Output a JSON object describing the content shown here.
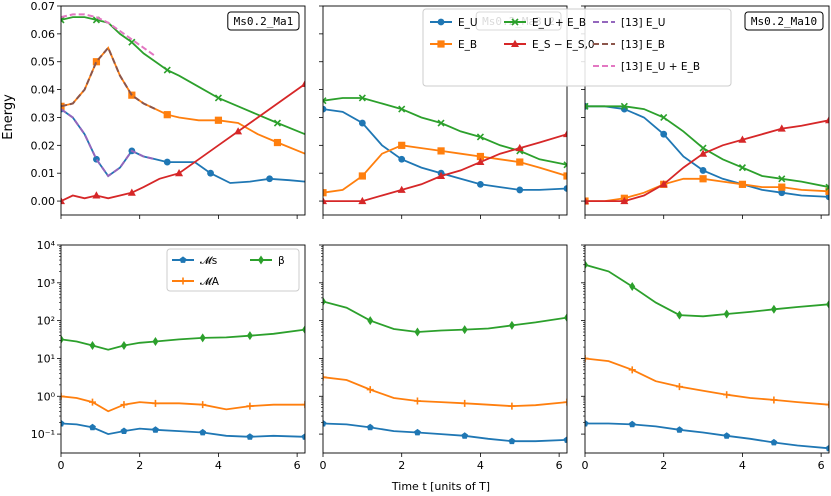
{
  "colors": {
    "E_U": "#1f77b4",
    "E_B": "#ff7f0e",
    "E_UB": "#2ca02c",
    "E_S": "#d62728",
    "ref_E_U": "#9467bd",
    "ref_E_B": "#8c564b",
    "ref_E_UB": "#e377c2",
    "M_s": "#1f77b4",
    "M_A": "#ff7f0e",
    "beta": "#2ca02c"
  },
  "labels": {
    "ylabel_top": "Energy",
    "xlabel": "Time t [units of T]",
    "panel_titles": [
      "Ms0.2_Ma1",
      "Ms0.2_Ma3.2",
      "Ms0.2_Ma10"
    ]
  },
  "legend_top": [
    {
      "key": "E_U",
      "label": "E_U",
      "marker": "circle"
    },
    {
      "key": "E_B",
      "label": "E_B",
      "marker": "square"
    },
    {
      "key": "E_UB",
      "label": "E_U + E_B",
      "marker": "x"
    },
    {
      "key": "E_S",
      "label": "E_S − E_S,0",
      "marker": "triangle"
    },
    {
      "key": "ref_E_U",
      "label": "[13] E_U",
      "marker": "dash"
    },
    {
      "key": "ref_E_B",
      "label": "[13] E_B",
      "marker": "dash"
    },
    {
      "key": "ref_E_UB",
      "label": "[13] E_U + E_B",
      "marker": "dash"
    }
  ],
  "legend_bottom": [
    {
      "key": "M_s",
      "label": "𝓜s",
      "marker": "pentagon"
    },
    {
      "key": "beta",
      "label": "β",
      "marker": "diamond"
    },
    {
      "key": "M_A",
      "label": "𝓜A",
      "marker": "plus"
    }
  ],
  "axes": {
    "top": {
      "xlim": [
        0,
        6.2
      ],
      "ylim": [
        -0.005,
        0.07
      ],
      "xticks": [
        0,
        2,
        4,
        6
      ],
      "yticks": [
        0.0,
        0.01,
        0.02,
        0.03,
        0.04,
        0.05,
        0.06,
        0.07
      ],
      "ytick_labels": [
        "0.00",
        "0.01",
        "0.02",
        "0.03",
        "0.04",
        "0.05",
        "0.06",
        "0.07"
      ]
    },
    "bottom": {
      "xlim": [
        0,
        6.2
      ],
      "ylim_log10": [
        -1.5,
        4
      ],
      "ytick_labels": [
        "10⁻¹",
        "10⁰",
        "10¹",
        "10²",
        "10³",
        "10⁴"
      ],
      "yticks_log10": [
        -1,
        0,
        1,
        2,
        3,
        4
      ],
      "scale": "log"
    },
    "x_tick_labels": [
      "0",
      "2",
      "4",
      "6"
    ]
  },
  "chart_data": [
    {
      "type": "line",
      "panel": "Ms0.2_Ma1",
      "row": "energy",
      "series": [
        {
          "key": "E_U",
          "x": [
            0,
            0.3,
            0.6,
            0.9,
            1.2,
            1.5,
            1.8,
            2.1,
            2.4,
            2.7,
            3.0,
            3.4,
            3.8,
            4.3,
            4.8,
            5.3,
            5.8,
            6.2
          ],
          "y": [
            0.033,
            0.03,
            0.024,
            0.015,
            0.009,
            0.012,
            0.018,
            0.016,
            0.015,
            0.014,
            0.014,
            0.014,
            0.01,
            0.0065,
            0.007,
            0.008,
            0.0075,
            0.007
          ]
        },
        {
          "key": "E_B",
          "x": [
            0,
            0.3,
            0.6,
            0.9,
            1.2,
            1.5,
            1.8,
            2.1,
            2.4,
            2.7,
            3.0,
            3.5,
            4.0,
            4.5,
            5.0,
            5.5,
            6.2
          ],
          "y": [
            0.034,
            0.035,
            0.04,
            0.05,
            0.055,
            0.045,
            0.038,
            0.035,
            0.033,
            0.031,
            0.03,
            0.029,
            0.029,
            0.028,
            0.024,
            0.021,
            0.017
          ]
        },
        {
          "key": "E_UB",
          "x": [
            0,
            0.3,
            0.6,
            0.9,
            1.2,
            1.5,
            1.8,
            2.1,
            2.4,
            2.7,
            3.0,
            3.5,
            4.0,
            4.5,
            5.0,
            5.5,
            6.2
          ],
          "y": [
            0.065,
            0.066,
            0.066,
            0.065,
            0.064,
            0.06,
            0.057,
            0.053,
            0.05,
            0.047,
            0.045,
            0.041,
            0.037,
            0.034,
            0.031,
            0.028,
            0.024
          ]
        },
        {
          "key": "E_S",
          "x": [
            0,
            0.3,
            0.6,
            0.9,
            1.2,
            1.5,
            1.8,
            2.1,
            2.5,
            3.0,
            3.5,
            4.0,
            4.5,
            5.0,
            5.5,
            6.2
          ],
          "y": [
            0.0,
            0.002,
            0.001,
            0.002,
            0.001,
            0.002,
            0.003,
            0.005,
            0.008,
            0.01,
            0.015,
            0.02,
            0.025,
            0.03,
            0.035,
            0.042
          ]
        },
        {
          "key": "ref_E_U",
          "x": [
            0,
            0.3,
            0.6,
            0.9,
            1.2,
            1.5,
            1.8,
            2.1,
            2.4
          ],
          "y": [
            0.033,
            0.03,
            0.024,
            0.015,
            0.009,
            0.012,
            0.018,
            0.016,
            0.015
          ]
        },
        {
          "key": "ref_E_B",
          "x": [
            0,
            0.3,
            0.6,
            0.9,
            1.2,
            1.5,
            1.8,
            2.1,
            2.4
          ],
          "y": [
            0.034,
            0.035,
            0.04,
            0.05,
            0.055,
            0.045,
            0.038,
            0.035,
            0.033
          ]
        },
        {
          "key": "ref_E_UB",
          "x": [
            0,
            0.3,
            0.6,
            0.9,
            1.2,
            1.5,
            1.8,
            2.1,
            2.4
          ],
          "y": [
            0.066,
            0.067,
            0.067,
            0.066,
            0.064,
            0.061,
            0.058,
            0.055,
            0.052
          ]
        }
      ]
    },
    {
      "type": "line",
      "panel": "Ms0.2_Ma3.2",
      "row": "energy",
      "series": [
        {
          "key": "E_U",
          "x": [
            0,
            0.5,
            1.0,
            1.5,
            2.0,
            2.5,
            3.0,
            3.5,
            4.0,
            4.5,
            5.0,
            5.5,
            6.2
          ],
          "y": [
            0.033,
            0.032,
            0.028,
            0.02,
            0.015,
            0.012,
            0.01,
            0.008,
            0.006,
            0.005,
            0.004,
            0.004,
            0.0045
          ]
        },
        {
          "key": "E_B",
          "x": [
            0,
            0.5,
            1.0,
            1.5,
            2.0,
            2.5,
            3.0,
            3.5,
            4.0,
            4.5,
            5.0,
            5.5,
            6.2
          ],
          "y": [
            0.003,
            0.004,
            0.009,
            0.017,
            0.02,
            0.019,
            0.018,
            0.017,
            0.016,
            0.015,
            0.014,
            0.012,
            0.009
          ]
        },
        {
          "key": "E_UB",
          "x": [
            0,
            0.5,
            1.0,
            1.5,
            2.0,
            2.5,
            3.0,
            3.5,
            4.0,
            4.5,
            5.0,
            5.5,
            6.2
          ],
          "y": [
            0.036,
            0.037,
            0.037,
            0.035,
            0.033,
            0.03,
            0.028,
            0.025,
            0.023,
            0.02,
            0.018,
            0.015,
            0.013
          ]
        },
        {
          "key": "E_S",
          "x": [
            0,
            0.5,
            1.0,
            1.5,
            2.0,
            2.5,
            3.0,
            3.5,
            4.0,
            4.5,
            5.0,
            5.5,
            6.2
          ],
          "y": [
            0.0,
            0.0,
            0.0,
            0.002,
            0.004,
            0.006,
            0.009,
            0.011,
            0.014,
            0.017,
            0.019,
            0.021,
            0.024
          ]
        }
      ]
    },
    {
      "type": "line",
      "panel": "Ms0.2_Ma10",
      "row": "energy",
      "series": [
        {
          "key": "E_U",
          "x": [
            0,
            0.5,
            1.0,
            1.5,
            2.0,
            2.5,
            3.0,
            3.5,
            4.0,
            4.5,
            5.0,
            5.5,
            6.2
          ],
          "y": [
            0.034,
            0.034,
            0.033,
            0.03,
            0.024,
            0.016,
            0.011,
            0.008,
            0.006,
            0.004,
            0.003,
            0.002,
            0.0015
          ]
        },
        {
          "key": "E_B",
          "x": [
            0,
            0.5,
            1.0,
            1.5,
            2.0,
            2.5,
            3.0,
            3.5,
            4.0,
            4.5,
            5.0,
            5.5,
            6.2
          ],
          "y": [
            0.0,
            0.0,
            0.001,
            0.003,
            0.006,
            0.008,
            0.008,
            0.007,
            0.006,
            0.005,
            0.005,
            0.004,
            0.0035
          ]
        },
        {
          "key": "E_UB",
          "x": [
            0,
            0.5,
            1.0,
            1.5,
            2.0,
            2.5,
            3.0,
            3.5,
            4.0,
            4.5,
            5.0,
            5.5,
            6.2
          ],
          "y": [
            0.034,
            0.034,
            0.034,
            0.033,
            0.03,
            0.025,
            0.019,
            0.015,
            0.012,
            0.009,
            0.008,
            0.007,
            0.005
          ]
        },
        {
          "key": "E_S",
          "x": [
            0,
            0.5,
            1.0,
            1.5,
            2.0,
            2.5,
            3.0,
            3.5,
            4.0,
            4.5,
            5.0,
            5.5,
            6.2
          ],
          "y": [
            0.0,
            0.0,
            0.0,
            0.002,
            0.006,
            0.012,
            0.017,
            0.02,
            0.022,
            0.024,
            0.026,
            0.027,
            0.029
          ]
        }
      ]
    },
    {
      "type": "line",
      "panel": "Ms0.2_Ma1",
      "row": "numbers",
      "yscale": "log",
      "series": [
        {
          "key": "M_s",
          "x": [
            0,
            0.4,
            0.8,
            1.2,
            1.6,
            2.0,
            2.4,
            3.0,
            3.6,
            4.2,
            4.8,
            5.4,
            6.2
          ],
          "y": [
            0.19,
            0.18,
            0.15,
            0.1,
            0.12,
            0.14,
            0.13,
            0.12,
            0.11,
            0.09,
            0.085,
            0.09,
            0.085
          ]
        },
        {
          "key": "M_A",
          "x": [
            0,
            0.4,
            0.8,
            1.2,
            1.6,
            2.0,
            2.4,
            3.0,
            3.6,
            4.2,
            4.8,
            5.4,
            6.2
          ],
          "y": [
            1.0,
            0.9,
            0.7,
            0.4,
            0.6,
            0.7,
            0.65,
            0.65,
            0.6,
            0.45,
            0.55,
            0.6,
            0.6
          ]
        },
        {
          "key": "beta",
          "x": [
            0,
            0.4,
            0.8,
            1.2,
            1.6,
            2.0,
            2.4,
            3.0,
            3.6,
            4.2,
            4.8,
            5.4,
            6.2
          ],
          "y": [
            32,
            28,
            22,
            17,
            22,
            26,
            28,
            32,
            35,
            36,
            40,
            45,
            58
          ]
        }
      ]
    },
    {
      "type": "line",
      "panel": "Ms0.2_Ma3.2",
      "row": "numbers",
      "yscale": "log",
      "series": [
        {
          "key": "M_s",
          "x": [
            0,
            0.6,
            1.2,
            1.8,
            2.4,
            3.0,
            3.6,
            4.2,
            4.8,
            5.4,
            6.2
          ],
          "y": [
            0.19,
            0.18,
            0.15,
            0.12,
            0.11,
            0.1,
            0.09,
            0.075,
            0.065,
            0.065,
            0.07
          ]
        },
        {
          "key": "M_A",
          "x": [
            0,
            0.6,
            1.2,
            1.8,
            2.4,
            3.0,
            3.6,
            4.2,
            4.8,
            5.4,
            6.2
          ],
          "y": [
            3.2,
            2.7,
            1.5,
            0.9,
            0.75,
            0.7,
            0.65,
            0.6,
            0.55,
            0.58,
            0.7
          ]
        },
        {
          "key": "beta",
          "x": [
            0,
            0.6,
            1.2,
            1.8,
            2.4,
            3.0,
            3.6,
            4.2,
            4.8,
            5.4,
            6.2
          ],
          "y": [
            320,
            220,
            100,
            60,
            50,
            55,
            58,
            62,
            75,
            90,
            120
          ]
        }
      ]
    },
    {
      "type": "line",
      "panel": "Ms0.2_Ma10",
      "row": "numbers",
      "yscale": "log",
      "series": [
        {
          "key": "M_s",
          "x": [
            0,
            0.6,
            1.2,
            1.8,
            2.4,
            3.0,
            3.6,
            4.2,
            4.8,
            5.4,
            6.2
          ],
          "y": [
            0.19,
            0.19,
            0.18,
            0.16,
            0.13,
            0.11,
            0.09,
            0.075,
            0.06,
            0.05,
            0.042
          ]
        },
        {
          "key": "M_A",
          "x": [
            0,
            0.6,
            1.2,
            1.8,
            2.4,
            3.0,
            3.6,
            4.2,
            4.8,
            5.4,
            6.2
          ],
          "y": [
            10,
            8.5,
            5,
            2.5,
            1.8,
            1.4,
            1.1,
            0.9,
            0.8,
            0.7,
            0.6
          ]
        },
        {
          "key": "beta",
          "x": [
            0,
            0.6,
            1.2,
            1.8,
            2.4,
            3.0,
            3.6,
            4.2,
            4.8,
            5.4,
            6.2
          ],
          "y": [
            3000,
            2000,
            800,
            300,
            140,
            130,
            150,
            170,
            200,
            230,
            270
          ]
        }
      ]
    }
  ]
}
